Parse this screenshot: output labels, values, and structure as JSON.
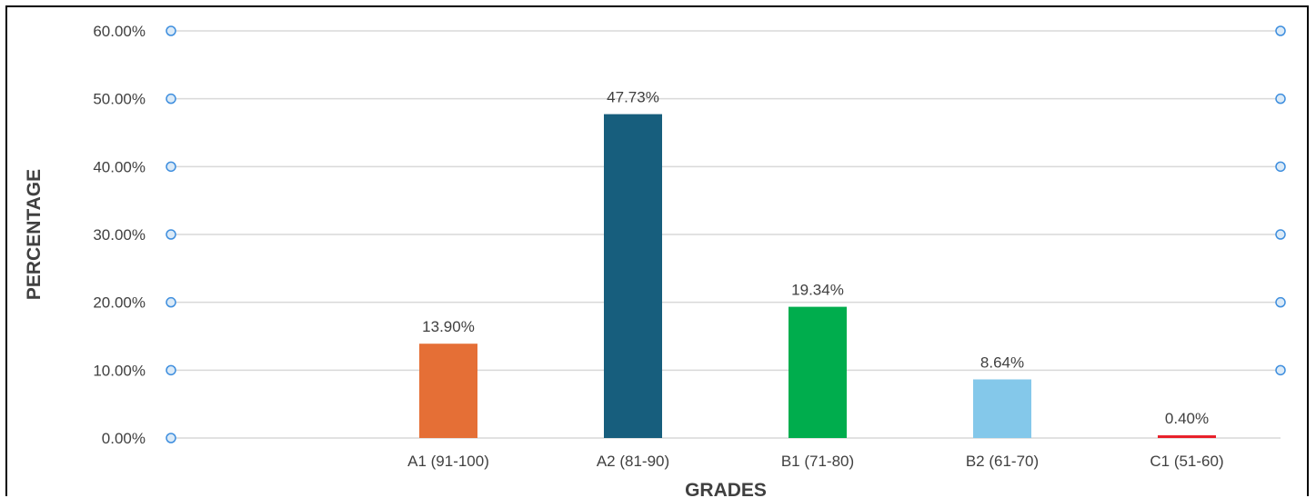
{
  "chart_data": {
    "type": "bar",
    "categories": [
      "",
      "A1 (91-100)",
      "A2 (81-90)",
      "B1 (71-80)",
      "B2 (61-70)",
      "C1 (51-60)"
    ],
    "values": [
      null,
      13.9,
      47.73,
      19.34,
      8.64,
      0.4
    ],
    "value_labels": [
      "",
      "13.90%",
      "47.73%",
      "19.34%",
      "8.64%",
      "0.40%"
    ],
    "bar_colors": [
      "#ffffff",
      "#E56F36",
      "#175E7D",
      "#00AD4D",
      "#84C8EA",
      "#E8202A"
    ],
    "y_ticks": [
      0,
      10,
      20,
      30,
      40,
      50,
      60
    ],
    "y_tick_labels": [
      "0.00%",
      "10.00%",
      "20.00%",
      "30.00%",
      "40.00%",
      "50.00%",
      "60.00%"
    ],
    "ylim": [
      0,
      60
    ],
    "xlabel": "GRADES",
    "ylabel": "PERCENTAGE",
    "grid": true,
    "legend": "none",
    "colors": {
      "gridline": "#d9d9d9",
      "handle_stroke": "#3e8ede",
      "handle_fill": "#dbeaf7",
      "text": "#404040"
    }
  }
}
